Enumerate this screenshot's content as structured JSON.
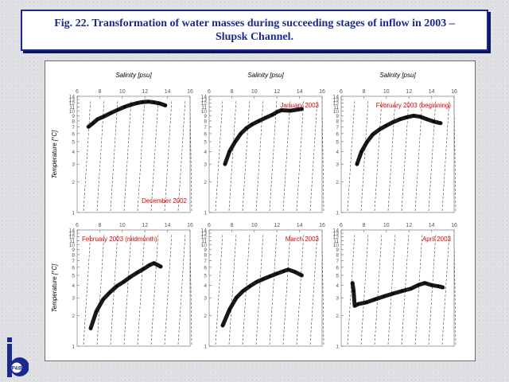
{
  "header": {
    "title_line1": "Fig. 22. Transformation of water masses during succeeding stages of inflow in 2003 –",
    "title_line2": "Slupsk Channel."
  },
  "logo": {
    "text": "P&B",
    "icon": "institute-logo-icon"
  },
  "colors": {
    "title_border": "#1a2a8c",
    "panel_label": "#e00000",
    "data": "#000000"
  },
  "figure": {
    "xlabel": "Salinity [psu]",
    "ylabel": "Temperature [°C]",
    "x_ticks": [
      "6",
      "8",
      "10",
      "12",
      "14",
      "16"
    ],
    "y_ticks": [
      "1",
      "2",
      "3",
      "4",
      "5",
      "6",
      "7",
      "8",
      "9",
      "10",
      "11",
      "12",
      "13",
      "14"
    ]
  },
  "chart_data": [
    {
      "type": "scatter",
      "panel_label": "December 2002",
      "label_position": "bottom-right",
      "xlabel": "Salinity [psu]",
      "ylabel": "Temperature [°C]",
      "xlim": [
        6,
        16
      ],
      "ylim": [
        1,
        14
      ],
      "series": [
        {
          "x": [
            7,
            7.4,
            7.8,
            8.4,
            9,
            9.6,
            10.2,
            10.8,
            11.3,
            11.8,
            12.3,
            12.8,
            13.3,
            13.8
          ],
          "y": [
            7,
            7.6,
            8.3,
            8.9,
            9.6,
            10.3,
            11,
            11.6,
            12,
            12.3,
            12.4,
            12.2,
            11.9,
            11.4
          ]
        }
      ]
    },
    {
      "type": "scatter",
      "panel_label": "January 2003",
      "label_position": "top-right",
      "xlabel": "Salinity [psu]",
      "ylabel": "Temperature [°C]",
      "xlim": [
        6,
        16
      ],
      "ylim": [
        1,
        14
      ],
      "series": [
        {
          "x": [
            7.4,
            7.8,
            8.3,
            8.8,
            9.3,
            9.8,
            10.4,
            11,
            11.6,
            12,
            12.4,
            13.2,
            14.2
          ],
          "y": [
            3,
            4,
            5,
            6,
            6.8,
            7.4,
            8,
            8.6,
            9.2,
            9.8,
            10.2,
            10.1,
            10.5
          ]
        }
      ]
    },
    {
      "type": "scatter",
      "panel_label": "February 2003 (beginning)",
      "label_position": "top-right",
      "xlabel": "Salinity [psu]",
      "ylabel": "Temperature [°C]",
      "xlim": [
        6,
        16
      ],
      "ylim": [
        1,
        14
      ],
      "series": [
        {
          "x": [
            7.4,
            7.8,
            8.3,
            8.8,
            9.4,
            10,
            10.6,
            11.2,
            11.8,
            12.4,
            13,
            13.6,
            14.2,
            14.8
          ],
          "y": [
            3,
            4,
            5,
            5.9,
            6.6,
            7.2,
            7.8,
            8.3,
            8.7,
            9,
            8.8,
            8.3,
            7.9,
            7.6
          ]
        }
      ]
    },
    {
      "type": "scatter",
      "panel_label": "February 2003 (midmonth)",
      "label_position": "top-left",
      "xlabel": "Salinity [psu]",
      "ylabel": "Temperature [°C]",
      "xlim": [
        6,
        16
      ],
      "ylim": [
        1,
        14
      ],
      "series": [
        {
          "x": [
            7.2,
            7.7,
            8.3,
            8.9,
            9.5,
            10.1,
            10.7,
            11.3,
            11.9,
            12.4,
            12.8,
            13.4
          ],
          "y": [
            1.5,
            2.2,
            2.9,
            3.4,
            3.9,
            4.3,
            4.8,
            5.3,
            5.8,
            6.3,
            6.6,
            6.1
          ]
        }
      ]
    },
    {
      "type": "scatter",
      "panel_label": "March 2003",
      "label_position": "top-right",
      "xlabel": "Salinity [psu]",
      "ylabel": "Temperature [°C]",
      "xlim": [
        6,
        16
      ],
      "ylim": [
        1,
        14
      ],
      "series": [
        {
          "x": [
            7.2,
            7.8,
            8.4,
            9,
            9.6,
            10.2,
            10.8,
            11.4,
            12,
            12.6,
            13,
            13.6,
            14.2
          ],
          "y": [
            1.6,
            2.3,
            3,
            3.5,
            3.9,
            4.3,
            4.6,
            4.9,
            5.2,
            5.5,
            5.7,
            5.4,
            5
          ]
        }
      ]
    },
    {
      "type": "scatter",
      "panel_label": "April 2003",
      "label_position": "top-right",
      "xlabel": "Salinity [psu]",
      "ylabel": "Temperature [°C]",
      "xlim": [
        6,
        16
      ],
      "ylim": [
        1,
        14
      ],
      "series": [
        {
          "x": [
            7,
            7.1,
            7.2,
            7.5,
            8.2,
            9,
            9.8,
            10.6,
            11.4,
            12.2,
            12.8,
            13.4,
            14,
            14.6,
            15
          ],
          "y": [
            4.2,
            3.5,
            2.5,
            2.6,
            2.7,
            2.9,
            3.1,
            3.3,
            3.5,
            3.7,
            4,
            4.2,
            4,
            3.9,
            3.8
          ]
        }
      ]
    }
  ]
}
